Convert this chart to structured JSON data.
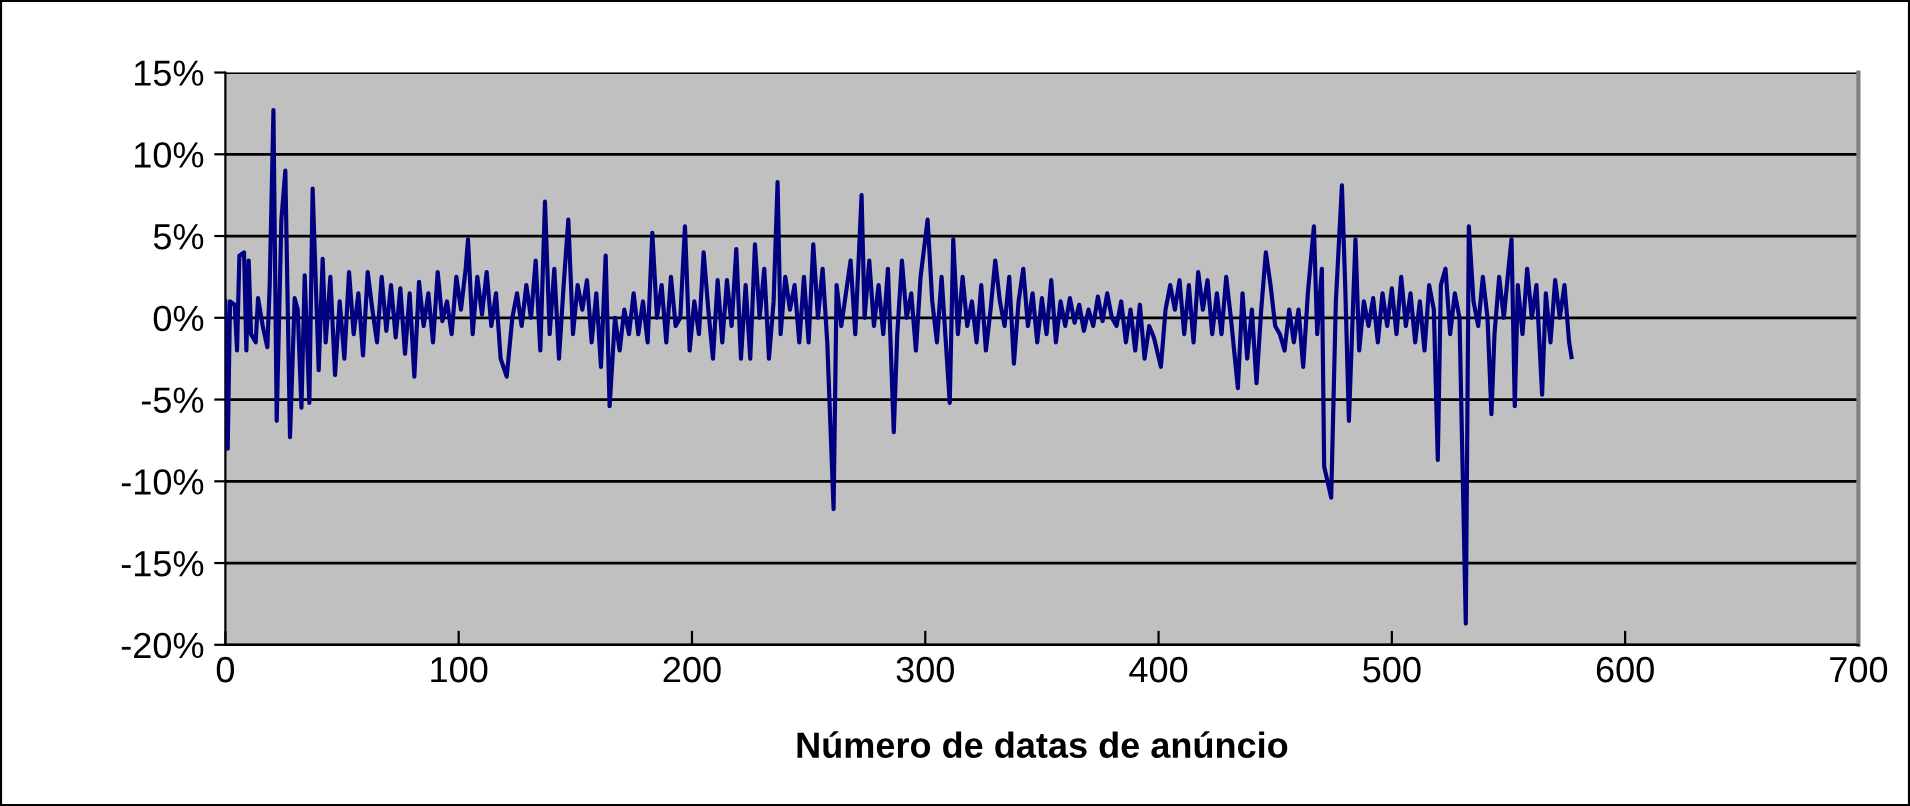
{
  "chart_data": {
    "type": "line",
    "xlabel": "Número de datas de anúncio",
    "xlim": [
      0,
      700
    ],
    "xticks": [
      0,
      100,
      200,
      300,
      400,
      500,
      600,
      700
    ],
    "ylim": [
      -20,
      15
    ],
    "yticks": [
      {
        "value": -20,
        "label": "-20%"
      },
      {
        "value": -15,
        "label": "-15%"
      },
      {
        "value": -10,
        "label": "-10%"
      },
      {
        "value": -5,
        "label": "-5%"
      },
      {
        "value": 0,
        "label": "0%"
      },
      {
        "value": 5,
        "label": "5%"
      },
      {
        "value": 10,
        "label": "10%"
      },
      {
        "value": 15,
        "label": "15%"
      }
    ],
    "grid": "y",
    "marker": "none",
    "line_style": "solid",
    "series": [
      {
        "color": "#000080",
        "x": [
          0,
          1,
          2,
          4,
          5,
          6,
          8,
          9,
          10,
          11,
          13,
          14,
          16,
          18,
          19,
          20.6,
          22,
          24,
          25.7,
          27.7,
          29.7,
          31,
          32.6,
          34,
          36,
          37.4,
          40,
          41.7,
          43,
          45,
          47,
          49,
          51,
          53,
          55,
          57,
          59,
          61,
          63,
          65,
          67,
          69,
          71,
          73,
          75,
          77,
          79,
          81,
          83,
          85,
          87,
          89,
          91,
          93,
          95,
          97,
          99,
          101,
          103,
          104,
          106,
          108,
          110,
          112,
          114,
          116,
          118,
          120.6,
          123,
          125,
          127,
          129,
          131,
          133,
          135,
          137,
          139,
          141,
          143,
          145,
          147,
          149,
          151,
          153,
          155,
          157,
          159,
          161,
          163,
          164.7,
          167,
          169,
          171,
          173,
          175,
          177,
          179,
          181,
          183,
          185,
          187,
          189,
          191,
          193,
          195,
          197,
          199,
          201,
          203,
          205,
          207,
          209,
          211,
          213,
          215,
          217,
          219,
          221,
          223,
          225,
          227,
          229,
          231,
          233,
          235,
          236.7,
          238,
          240,
          242,
          244,
          246,
          248,
          250,
          252,
          254,
          256,
          258,
          260.7,
          262,
          264,
          266,
          268,
          270,
          272.7,
          274,
          276,
          278,
          280,
          282,
          284,
          286.5,
          288,
          290,
          292,
          294,
          296,
          298,
          301,
          303,
          305,
          307,
          310.5,
          312,
          314,
          316,
          318,
          320,
          322,
          324,
          326,
          328,
          330,
          332,
          334,
          336,
          338,
          340,
          342,
          344,
          346,
          348,
          350,
          352,
          354,
          356,
          358,
          360,
          362,
          364,
          366,
          368,
          370,
          372,
          374,
          376,
          378,
          380,
          382,
          384,
          386,
          388,
          390,
          392,
          394,
          396,
          398,
          401,
          403,
          405,
          407,
          409,
          411,
          413,
          415,
          417,
          419,
          421,
          423,
          425,
          427,
          429,
          431,
          434,
          436,
          438,
          440,
          442,
          444,
          446,
          448,
          450,
          452,
          454,
          456,
          458,
          460,
          462,
          464,
          466.6,
          468,
          470,
          471,
          474,
          476,
          478.6,
          480,
          481.6,
          484.4,
          486,
          488,
          490,
          492,
          494,
          496,
          498,
          500,
          502,
          504,
          506,
          508,
          510,
          512,
          514,
          516,
          518,
          519.7,
          521,
          523,
          525,
          527,
          529,
          531.7,
          533,
          535,
          537,
          539,
          541,
          542.7,
          544,
          546,
          548,
          550,
          551.3,
          552.7,
          554,
          556,
          558,
          560,
          562,
          564.4,
          566,
          568,
          570,
          572,
          574,
          576,
          577
        ],
        "values": [
          1,
          -8,
          1,
          0.8,
          -2,
          3.8,
          4,
          -2,
          3.5,
          -1,
          -1.5,
          1.2,
          -0.5,
          -1.8,
          2,
          12.7,
          -6.3,
          6,
          9,
          -7.3,
          1.2,
          0.5,
          -5.5,
          2.6,
          -5.2,
          7.9,
          -3.2,
          3.6,
          -1.5,
          2.5,
          -3.5,
          1,
          -2.5,
          2.8,
          -1,
          1.5,
          -2.3,
          2.8,
          0.5,
          -1.5,
          2.5,
          -0.8,
          2,
          -1.2,
          1.8,
          -2.2,
          1.5,
          -3.6,
          2.2,
          -0.5,
          1.5,
          -1.5,
          2.8,
          -0.2,
          1,
          -1,
          2.5,
          0.5,
          3,
          4.8,
          -1,
          2.5,
          0.2,
          2.8,
          -0.5,
          1.5,
          -2.5,
          -3.6,
          0,
          1.5,
          -0.5,
          2,
          0,
          3.5,
          -2,
          7.1,
          -1,
          3,
          -2.5,
          2,
          6,
          -1,
          2,
          0.5,
          2.3,
          -1.5,
          1.5,
          -3,
          3.8,
          -5.4,
          0,
          -2,
          0.5,
          -1,
          1.5,
          -1,
          1,
          -1.5,
          5.2,
          0,
          2,
          -1.5,
          2.5,
          -0.5,
          0,
          5.6,
          -2,
          1,
          -1,
          4,
          0.5,
          -2.5,
          2.3,
          -1.5,
          2.3,
          -0.5,
          4.2,
          -2.5,
          2,
          -2.5,
          4.5,
          0,
          3,
          -2.5,
          1,
          8.3,
          -1,
          2.5,
          0.5,
          2,
          -1.5,
          2.5,
          -1.5,
          4.5,
          0,
          3,
          -1.5,
          -11.7,
          2,
          -0.5,
          1.5,
          3.5,
          -1,
          7.5,
          0,
          3.5,
          -0.5,
          2,
          -1,
          3,
          -7,
          -1,
          3.5,
          0,
          1.5,
          -2,
          2.5,
          6,
          1,
          -1.5,
          2.5,
          -5.2,
          4.8,
          -1,
          2.5,
          -0.5,
          1,
          -1.5,
          2,
          -2,
          0.5,
          3.5,
          1,
          -0.5,
          2.5,
          -2.8,
          1,
          3,
          -0.5,
          1.5,
          -1.5,
          1.2,
          -1,
          2.3,
          -1.5,
          1,
          -0.5,
          1.2,
          -0.3,
          0.8,
          -0.8,
          0.5,
          -0.5,
          1.3,
          -0.2,
          1.5,
          0,
          -0.5,
          1,
          -1.5,
          0.5,
          -2,
          0.8,
          -2.5,
          -0.5,
          -1.2,
          -3,
          0.5,
          2,
          0.5,
          2.3,
          -1,
          2,
          -1.5,
          2.8,
          0.5,
          2.3,
          -1,
          1.5,
          -1,
          2.5,
          0,
          -4.3,
          1.5,
          -2.5,
          0.5,
          -4,
          0.5,
          4,
          2,
          -0.5,
          -1,
          -2,
          0.5,
          -1.5,
          0.5,
          -3,
          1.5,
          5.6,
          -1,
          3,
          -9.1,
          -11,
          1,
          8.1,
          2,
          -6.3,
          4.8,
          -2,
          1,
          -0.5,
          1.2,
          -1.5,
          1.5,
          -0.5,
          1.8,
          -1,
          2.5,
          -0.5,
          1.5,
          -1.5,
          1,
          -2,
          2,
          0.5,
          -8.7,
          2,
          3,
          -1,
          1.5,
          0,
          -18.7,
          5.6,
          1,
          -0.5,
          2.5,
          0,
          -5.9,
          -1,
          2.5,
          0,
          3,
          4.8,
          -5.4,
          2,
          -1,
          3,
          0,
          2,
          -4.7,
          1.5,
          -1.5,
          2.3,
          0,
          2,
          -1.5,
          -2.4
        ]
      }
    ]
  }
}
